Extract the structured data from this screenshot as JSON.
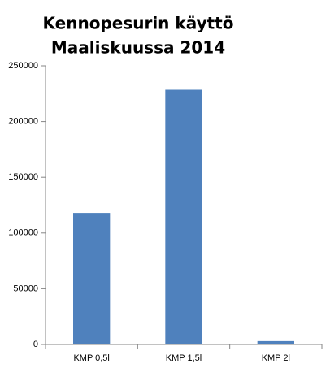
{
  "chart_data": {
    "type": "bar",
    "title": [
      "Kennopesurin käyttö",
      "Maaliskuussa 2014"
    ],
    "categories": [
      "KMP 0,5l",
      "KMP 1,5l",
      "KMP 2l"
    ],
    "values": [
      118000,
      228500,
      3000
    ],
    "color": "#4f81bd",
    "ylim": [
      0,
      250000
    ],
    "yticks": [
      0,
      50000,
      100000,
      150000,
      200000,
      250000
    ],
    "grid": false
  }
}
